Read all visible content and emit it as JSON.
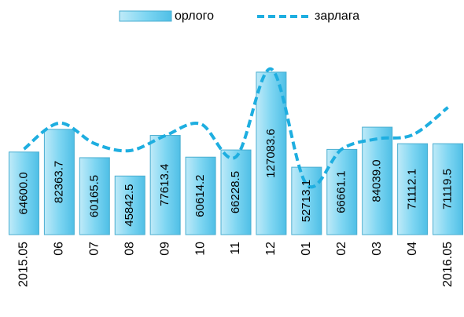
{
  "chart_data": {
    "type": "bar_line",
    "categories": [
      "2015.05",
      "06",
      "07",
      "08",
      "09",
      "10",
      "11",
      "12",
      "01",
      "02",
      "03",
      "04",
      "2016.05"
    ],
    "series": [
      {
        "name": "орлого",
        "type": "bar",
        "color": "#7fd6f2",
        "values": [
          64600.0,
          82363.7,
          60165.5,
          45842.5,
          77613.4,
          60614.2,
          66228.5,
          127083.6,
          52713.1,
          66661.1,
          84039.0,
          71112.1,
          71119.5
        ],
        "value_labels": [
          "64600.0",
          "82363.7",
          "60165.5",
          "45842.5",
          "77613.4",
          "60614.2",
          "66228.5",
          "127083.6",
          "52713.1",
          "66661.1",
          "84039.0",
          "71112.1",
          "71119.5"
        ]
      },
      {
        "name": "зарлага",
        "type": "line",
        "color": "#1eaee0",
        "values": [
          66900,
          87200,
          71200,
          65700,
          77400,
          86600,
          60800,
          129500,
          39300,
          66900,
          74900,
          78000,
          99500
        ]
      }
    ],
    "legend": "top"
  }
}
